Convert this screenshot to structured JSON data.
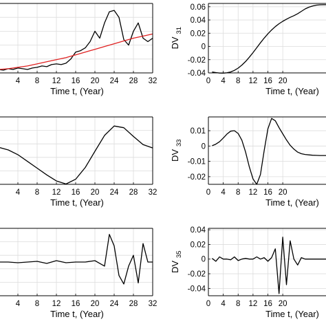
{
  "chart_data": [
    {
      "id": "left-top",
      "type": "line",
      "xlabel": "Time t, (Year)",
      "ylabel": "",
      "ylabel_sub": "",
      "xlim": [
        0,
        32
      ],
      "ylim": [
        0,
        1
      ],
      "xticks": [
        4,
        8,
        12,
        16,
        20,
        24,
        28,
        32
      ],
      "yticks": [],
      "grid": true,
      "series": [
        {
          "color": "#000000",
          "x": [
            0,
            1,
            2,
            3,
            4,
            5,
            6,
            7,
            8,
            9,
            10,
            11,
            12,
            13,
            14,
            15,
            16,
            17,
            18,
            19,
            20,
            21,
            22,
            23,
            24,
            25,
            26,
            27,
            28,
            29,
            30,
            31,
            32
          ],
          "y": [
            0.05,
            0.04,
            0.06,
            0.05,
            0.07,
            0.06,
            0.05,
            0.07,
            0.08,
            0.1,
            0.09,
            0.12,
            0.13,
            0.12,
            0.14,
            0.2,
            0.3,
            0.32,
            0.36,
            0.45,
            0.6,
            0.5,
            0.72,
            0.88,
            0.9,
            0.8,
            0.48,
            0.4,
            0.6,
            0.72,
            0.5,
            0.45,
            0.5
          ]
        },
        {
          "color": "#e02020",
          "x": [
            0,
            2,
            4,
            6,
            8,
            10,
            12,
            14,
            16,
            18,
            20,
            22,
            24,
            26,
            28,
            30,
            32
          ],
          "y": [
            0.05,
            0.06,
            0.08,
            0.1,
            0.13,
            0.16,
            0.19,
            0.22,
            0.26,
            0.3,
            0.34,
            0.38,
            0.42,
            0.46,
            0.5,
            0.53,
            0.56
          ]
        }
      ]
    },
    {
      "id": "right-top",
      "type": "line",
      "xlabel": "Time t, (Year)",
      "ylabel": "DV",
      "ylabel_sub": "31",
      "xlim": [
        0,
        32
      ],
      "ylim": [
        -0.04,
        0.065
      ],
      "xticks": [
        0,
        4,
        8,
        12,
        16,
        20
      ],
      "yticks": [
        "0.06",
        "0.04",
        "0.02",
        "0",
        "-0.02",
        "-0.04"
      ],
      "grid": true,
      "series": [
        {
          "color": "#000000",
          "x": [
            1,
            2,
            3,
            4,
            5,
            6,
            7,
            8,
            9,
            10,
            11,
            12,
            13,
            14,
            15,
            16,
            17,
            18,
            19,
            20,
            21,
            22,
            23,
            24,
            25,
            26,
            27,
            28,
            29,
            30,
            31,
            32
          ],
          "y": [
            -0.0385,
            -0.0395,
            -0.0402,
            -0.0403,
            -0.0398,
            -0.0385,
            -0.0362,
            -0.0327,
            -0.0282,
            -0.0227,
            -0.0163,
            -0.0093,
            -0.0019,
            0.0055,
            0.0126,
            0.0191,
            0.0249,
            0.03,
            0.0343,
            0.038,
            0.0412,
            0.044,
            0.0465,
            0.0495,
            0.053,
            0.0567,
            0.0593,
            0.0612,
            0.0624,
            0.0629,
            0.063,
            0.063
          ]
        }
      ]
    },
    {
      "id": "left-middle",
      "type": "line",
      "xlabel": "Time t, (Year)",
      "ylabel": "",
      "ylabel_sub": "",
      "xlim": [
        0,
        32
      ],
      "ylim": [
        -1,
        1
      ],
      "xticks": [
        4,
        8,
        12,
        16,
        20,
        24,
        28,
        32
      ],
      "yticks": [],
      "grid": true,
      "series": [
        {
          "color": "#000000",
          "x": [
            0,
            2,
            4,
            6,
            8,
            10,
            12,
            14,
            16,
            18,
            20,
            22,
            24,
            26,
            28,
            30,
            32
          ],
          "y": [
            0.1,
            0.02,
            -0.12,
            -0.32,
            -0.52,
            -0.72,
            -0.9,
            -0.99,
            -0.85,
            -0.5,
            -0.02,
            0.45,
            0.73,
            0.68,
            0.42,
            0.18,
            0.08
          ]
        }
      ]
    },
    {
      "id": "right-middle",
      "type": "line",
      "xlabel": "Time t, (Year)",
      "ylabel": "DV",
      "ylabel_sub": "33",
      "xlim": [
        0,
        32
      ],
      "ylim": [
        -0.025,
        0.019
      ],
      "xticks": [
        0,
        4,
        8,
        12,
        16,
        20
      ],
      "yticks": [
        "0.01",
        "0",
        "-0.01",
        "-0.02"
      ],
      "grid": true,
      "series": [
        {
          "color": "#000000",
          "x": [
            1,
            2,
            3,
            4,
            5,
            6,
            7,
            8,
            9,
            10,
            11,
            12,
            13,
            14,
            15,
            16,
            17,
            18,
            19,
            20,
            21,
            22,
            23,
            24,
            25,
            26,
            27,
            28,
            29,
            30,
            31,
            32
          ],
          "y": [
            0.0002,
            0.0012,
            0.0028,
            0.0052,
            0.0078,
            0.0097,
            0.01,
            0.0082,
            0.0038,
            -0.004,
            -0.0136,
            -0.0215,
            -0.025,
            -0.0186,
            -0.003,
            0.0112,
            0.018,
            0.0165,
            0.012,
            0.008,
            0.004,
            0.0005,
            -0.002,
            -0.004,
            -0.005,
            -0.0055,
            -0.0058,
            -0.006,
            -0.0061,
            -0.0062,
            -0.0062,
            -0.0062
          ]
        }
      ]
    },
    {
      "id": "left-bottom",
      "type": "line",
      "xlabel": "Time t, (Year)",
      "ylabel": "",
      "ylabel_sub": "",
      "xlim": [
        0,
        32
      ],
      "ylim": [
        -1,
        1
      ],
      "xticks": [
        4,
        8,
        12,
        16,
        20,
        24,
        28,
        32
      ],
      "yticks": [],
      "grid": true,
      "series": [
        {
          "color": "#000000",
          "x": [
            0,
            2,
            4,
            6,
            8,
            10,
            12,
            14,
            16,
            18,
            20,
            22,
            23,
            24,
            25,
            26,
            27,
            28,
            29,
            30,
            31,
            32
          ],
          "y": [
            0.0,
            0.0,
            -0.02,
            0.0,
            0.02,
            -0.04,
            0.04,
            -0.02,
            0.0,
            0.0,
            0.04,
            -0.12,
            0.82,
            0.48,
            -0.4,
            -0.65,
            -0.12,
            0.2,
            -0.62,
            0.55,
            0.0,
            0.0
          ]
        }
      ]
    },
    {
      "id": "right-bottom",
      "type": "line",
      "xlabel": "Time t, (Year)",
      "ylabel": "DV",
      "ylabel_sub": "35",
      "xlim": [
        0,
        32
      ],
      "ylim": [
        -0.05,
        0.042
      ],
      "xticks": [
        0,
        4,
        8,
        12,
        16,
        20
      ],
      "yticks": [
        "0.04",
        "0.02",
        "0",
        "-0.02",
        "-0.04"
      ],
      "grid": true,
      "series": [
        {
          "color": "#000000",
          "x": [
            1,
            2,
            3,
            4,
            5,
            6,
            7,
            8,
            9,
            10,
            11,
            12,
            13,
            14,
            15,
            16,
            17,
            18,
            19,
            20,
            21,
            22,
            23,
            24,
            25,
            26,
            27,
            28,
            29,
            30,
            31,
            32
          ],
          "y": [
            0.001,
            -0.003,
            0.003,
            0.0,
            0.0,
            -0.001,
            0.003,
            -0.002,
            0.0,
            0.001,
            0.0,
            0.0,
            0.003,
            0.0,
            0.002,
            -0.003,
            0.002,
            0.014,
            -0.047,
            0.03,
            -0.035,
            0.025,
            0.0,
            -0.008,
            0.002,
            0.0,
            0.0,
            0.0,
            0.0,
            0.0,
            0.0,
            0.0
          ]
        }
      ]
    }
  ]
}
